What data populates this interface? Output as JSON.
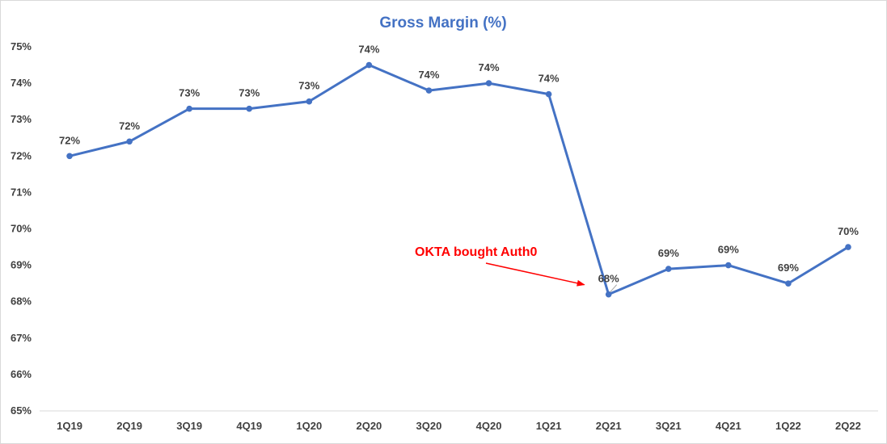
{
  "chart_data": {
    "type": "line",
    "title": "Gross Margin (%)",
    "xlabel": "",
    "ylabel": "",
    "categories": [
      "1Q19",
      "2Q19",
      "3Q19",
      "4Q19",
      "1Q20",
      "2Q20",
      "3Q20",
      "4Q20",
      "1Q21",
      "2Q21",
      "3Q21",
      "4Q21",
      "1Q22",
      "2Q22"
    ],
    "series": [
      {
        "values": [
          72.0,
          72.4,
          73.3,
          73.3,
          73.5,
          74.5,
          73.8,
          74.0,
          73.7,
          68.2,
          68.9,
          69.0,
          68.5,
          69.5
        ],
        "labels": [
          "72%",
          "72%",
          "73%",
          "73%",
          "73%",
          "74%",
          "74%",
          "74%",
          "74%",
          "68%",
          "69%",
          "69%",
          "69%",
          "70%"
        ],
        "color": "#4472c4"
      }
    ],
    "yticks": [
      "65%",
      "66%",
      "67%",
      "68%",
      "69%",
      "70%",
      "71%",
      "72%",
      "73%",
      "74%",
      "75%"
    ],
    "ylim": [
      65,
      75
    ],
    "grid": false,
    "legend": "none",
    "annotation": {
      "text": "OKTA bought Auth0",
      "color": "#ff0000",
      "target_category": "2Q21"
    }
  }
}
